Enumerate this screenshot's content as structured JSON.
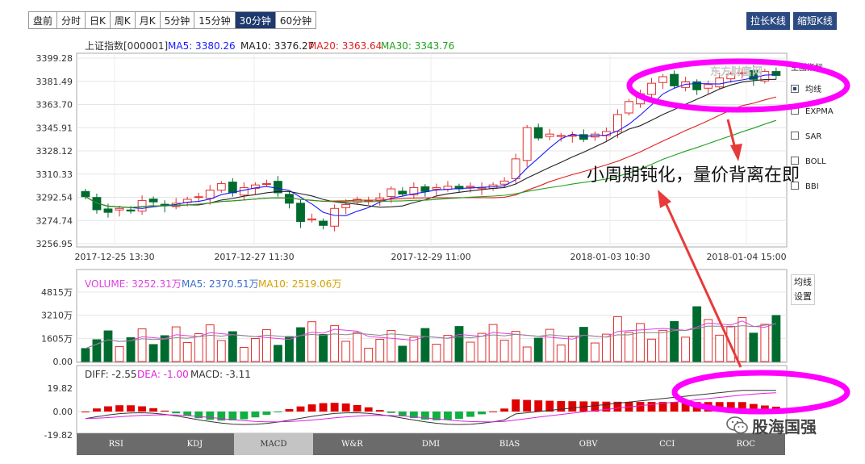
{
  "tabs": [
    "盘前",
    "分时",
    "日K",
    "周K",
    "月K",
    "5分钟",
    "15分钟",
    "30分钟",
    "60分钟"
  ],
  "active_tab": 7,
  "right_buttons": {
    "lengthen": "拉长K线",
    "shorten": "缩短K线"
  },
  "legend": {
    "name": "上证指数[000001]",
    "ma5": "MA5: 3380.26",
    "ma10": "MA10: 3376.27",
    "ma20": "MA20: 3363.64",
    "ma30": "MA30: 3343.76"
  },
  "colors": {
    "up": "#e03030",
    "down": "#006b2e",
    "ma5": "#1a1aff",
    "ma10": "#222222",
    "ma20": "#e02020",
    "ma30": "#20a020",
    "annotation": "#ff00ff"
  },
  "price_axis": [
    "3399.28",
    "3381.49",
    "3363.70",
    "3345.91",
    "3328.12",
    "3310.33",
    "3292.54",
    "3274.74",
    "3256.95"
  ],
  "time_axis": [
    "2017-12-25 13:30",
    "2017-12-27 11:30",
    "2017-12-29 11:00",
    "2018-01-03 10:30",
    "2018-01-04 15:00"
  ],
  "watermark": "东方财富网",
  "side_panel": {
    "title": "主图指标",
    "items": [
      {
        "label": "均线",
        "checked": true
      },
      {
        "label": "EXPMA",
        "checked": false
      },
      {
        "label": "SAR",
        "checked": false
      },
      {
        "label": "BOLL",
        "checked": false
      },
      {
        "label": "BBI",
        "checked": false
      }
    ]
  },
  "annotation_text": "小周期钝化，量价背离在即",
  "volume": {
    "label": "VOLUME: 3252.31万",
    "ma5": "MA5: 2370.51万",
    "ma10": "MA10: 2519.06万",
    "axis": [
      "4815万",
      "3210万",
      "1605万",
      "0.00"
    ],
    "settings": [
      "均线",
      "设置"
    ]
  },
  "macd": {
    "diff": "DIFF: -2.55",
    "dea": "DEA: -1.00",
    "macd": "MACD: -3.11",
    "axis": [
      "19.82",
      "0.00",
      "-19.82"
    ]
  },
  "bottom_tabs": [
    "RSI",
    "KDJ",
    "MACD",
    "W&R",
    "DMI",
    "BIAS",
    "OBV",
    "CCI",
    "ROC"
  ],
  "active_bottom_tab": 2,
  "brand": "股海国强"
}
